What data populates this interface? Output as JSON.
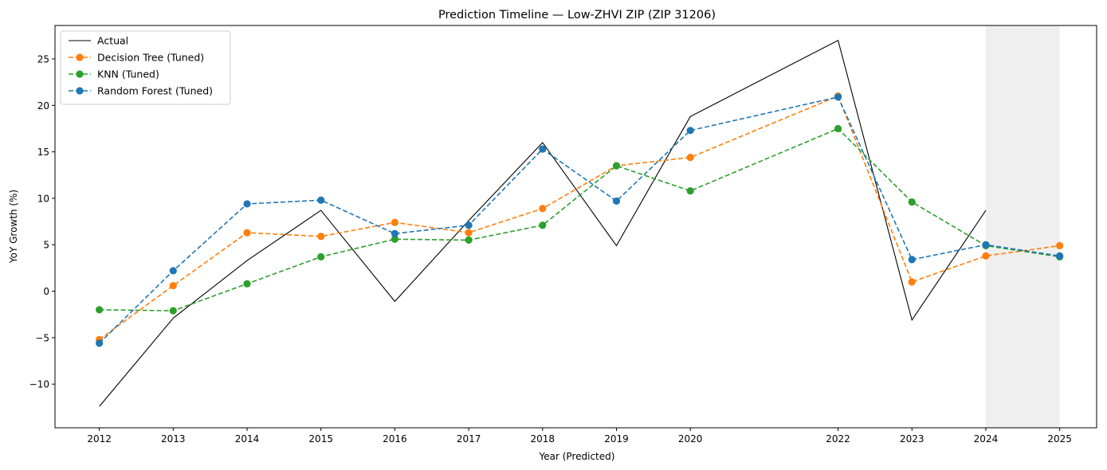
{
  "chart_data": {
    "type": "line",
    "title": "Prediction Timeline — Low-ZHVI ZIP (ZIP 31206)",
    "xlabel": "Year (Predicted)",
    "ylabel": "YoY Growth (%)",
    "x": [
      2012,
      2013,
      2014,
      2015,
      2016,
      2017,
      2018,
      2019,
      2020,
      2022,
      2023,
      2024,
      2025
    ],
    "xlim": [
      2011.4,
      2025.5
    ],
    "ylim": [
      -14.7,
      28.6
    ],
    "yticks": [
      -10,
      -5,
      0,
      5,
      10,
      15,
      20,
      25
    ],
    "grid": false,
    "legend_position": "top-left",
    "shaded_region": {
      "x_from": 2024,
      "x_to": 2025,
      "color": "#efefef"
    },
    "series": [
      {
        "name": "Actual",
        "color": "#000000",
        "style": "solid",
        "markers": false,
        "x": [
          2012,
          2013,
          2014,
          2015,
          2016,
          2017,
          2018,
          2019,
          2020,
          2022,
          2023,
          2024
        ],
        "values": [
          -12.4,
          -2.9,
          3.3,
          8.7,
          -1.1,
          7.6,
          16.0,
          4.9,
          18.8,
          27.0,
          -3.1,
          8.7
        ]
      },
      {
        "name": "Decision Tree (Tuned)",
        "color": "#ff7f0e",
        "style": "dashed",
        "markers": true,
        "x": [
          2012,
          2013,
          2014,
          2015,
          2016,
          2017,
          2018,
          2019,
          2020,
          2022,
          2023,
          2024,
          2025
        ],
        "values": [
          -5.2,
          0.6,
          6.3,
          5.9,
          7.4,
          6.3,
          8.9,
          13.5,
          14.4,
          21.0,
          1.0,
          3.8,
          4.9
        ]
      },
      {
        "name": "KNN (Tuned)",
        "color": "#2ca02c",
        "style": "dashed",
        "markers": true,
        "x": [
          2012,
          2013,
          2014,
          2015,
          2016,
          2017,
          2018,
          2019,
          2020,
          2022,
          2023,
          2024,
          2025
        ],
        "values": [
          -2.0,
          -2.1,
          0.8,
          3.7,
          5.6,
          5.5,
          7.1,
          13.5,
          10.8,
          17.5,
          9.6,
          4.9,
          3.7
        ]
      },
      {
        "name": "Random Forest (Tuned)",
        "color": "#1f77b4",
        "style": "dashed",
        "markers": true,
        "x": [
          2012,
          2013,
          2014,
          2015,
          2016,
          2017,
          2018,
          2019,
          2020,
          2022,
          2023,
          2024,
          2025
        ],
        "values": [
          -5.6,
          2.2,
          9.4,
          9.8,
          6.2,
          7.1,
          15.3,
          9.7,
          17.3,
          20.9,
          3.4,
          5.0,
          3.8
        ]
      }
    ]
  }
}
